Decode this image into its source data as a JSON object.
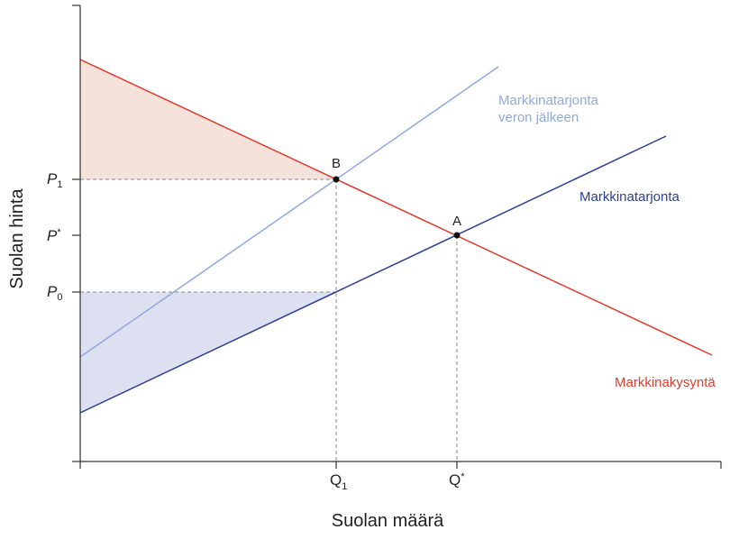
{
  "axes": {
    "x_title": "Suolan määrä",
    "y_title": "Suolan hinta"
  },
  "ticks": {
    "p1_main": "P",
    "p1_sub": "1",
    "pstar_main": "P",
    "pstar_sup": "*",
    "p0_main": "P",
    "p0_sub": "0",
    "q1_main": "Q",
    "q1_sub": "1",
    "qstar_main": "Q",
    "qstar_sup": "*"
  },
  "curves": {
    "supply_after_tax_line1": "Markkinatarjonta",
    "supply_after_tax_line2": "veron jälkeen",
    "supply": "Markkinatarjonta",
    "demand": "Markkinakysyntä"
  },
  "points": {
    "b": "B",
    "a": "A"
  },
  "colors": {
    "demand": "#e4392b",
    "supply": "#2b3f98",
    "supply_after_tax": "#8fa8de",
    "consumer_area": "#f5e2da",
    "producer_area": "#dde0f0",
    "dashed": "#888888",
    "axis": "#333333"
  }
}
